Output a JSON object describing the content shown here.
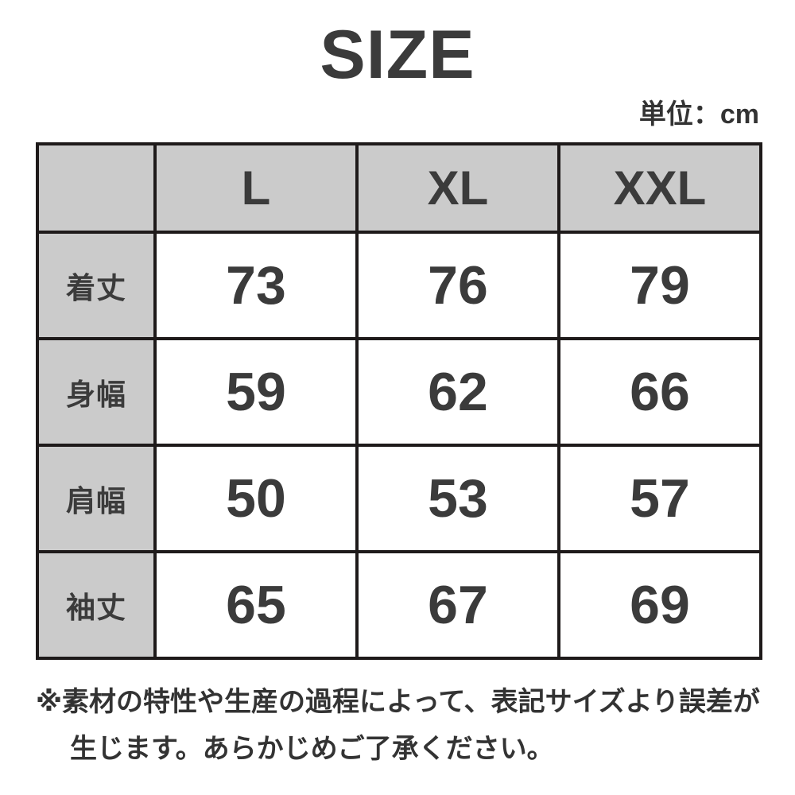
{
  "title": "SIZE",
  "unit_label": "単位：cm",
  "table": {
    "corner": "",
    "sizes": [
      "L",
      "XL",
      "XXL"
    ],
    "rows": [
      {
        "label": "着丈",
        "values": [
          "73",
          "76",
          "79"
        ]
      },
      {
        "label": "身幅",
        "values": [
          "59",
          "62",
          "66"
        ]
      },
      {
        "label": "肩幅",
        "values": [
          "50",
          "53",
          "57"
        ]
      },
      {
        "label": "袖丈",
        "values": [
          "65",
          "67",
          "69"
        ]
      }
    ]
  },
  "note": {
    "line1": "※素材の特性や生産の過程によって、表記サイズより誤差が",
    "line2": "生じます。あらかじめご了承ください。"
  },
  "colors": {
    "background": "#ffffff",
    "header_bg": "#cbcbcb",
    "border": "#1e1a1a",
    "title_text": "#3b3b3b",
    "table_text": "#3b3b3b",
    "note_text": "#333333"
  }
}
